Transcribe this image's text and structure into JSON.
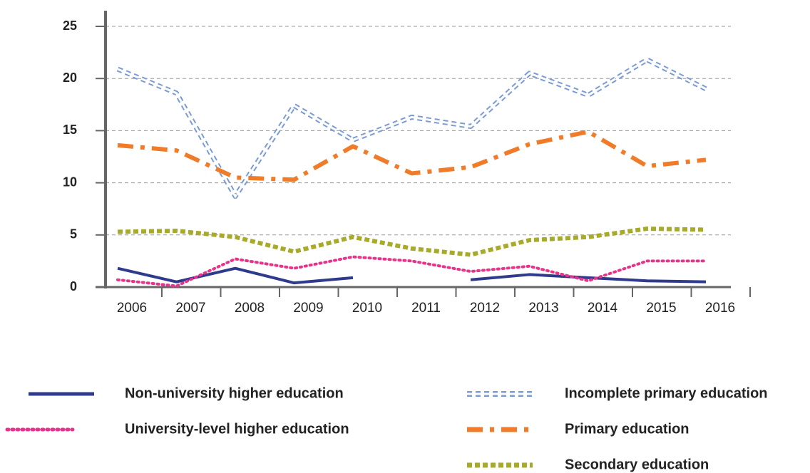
{
  "chart_data": {
    "type": "line",
    "categories": [
      "2006",
      "2007",
      "2008",
      "2009",
      "2010",
      "2011",
      "2012",
      "2013",
      "2014",
      "2015",
      "2016"
    ],
    "series": [
      {
        "name": "Non-university higher education",
        "color": "#2e3a8c",
        "values": [
          1.8,
          0.5,
          1.8,
          0.4,
          0.9,
          null,
          0.7,
          1.2,
          0.9,
          0.6,
          0.5
        ]
      },
      {
        "name": "University-level higher education",
        "color": "#e8338a",
        "values": [
          0.7,
          0.1,
          2.7,
          1.8,
          2.9,
          2.5,
          1.5,
          2.0,
          0.6,
          2.5,
          2.5
        ]
      },
      {
        "name": "Incomplete primary education",
        "color": "#7c9bd2",
        "values": [
          20.9,
          18.6,
          8.7,
          17.4,
          14.1,
          16.3,
          15.4,
          20.5,
          18.4,
          21.8,
          19.0
        ]
      },
      {
        "name": "Primary education",
        "color": "#f07c2a",
        "values": [
          13.6,
          13.1,
          10.5,
          10.3,
          13.5,
          10.9,
          11.5,
          13.7,
          14.9,
          11.6,
          12.2
        ]
      },
      {
        "name": "Secondary education",
        "color": "#a8ab2a",
        "values": [
          5.3,
          5.4,
          4.8,
          3.4,
          4.8,
          3.7,
          3.1,
          4.5,
          4.8,
          5.6,
          5.5
        ]
      }
    ],
    "ylim": [
      0,
      25
    ],
    "yticks": [
      0,
      5,
      10,
      15,
      20,
      25
    ],
    "grid": true
  }
}
